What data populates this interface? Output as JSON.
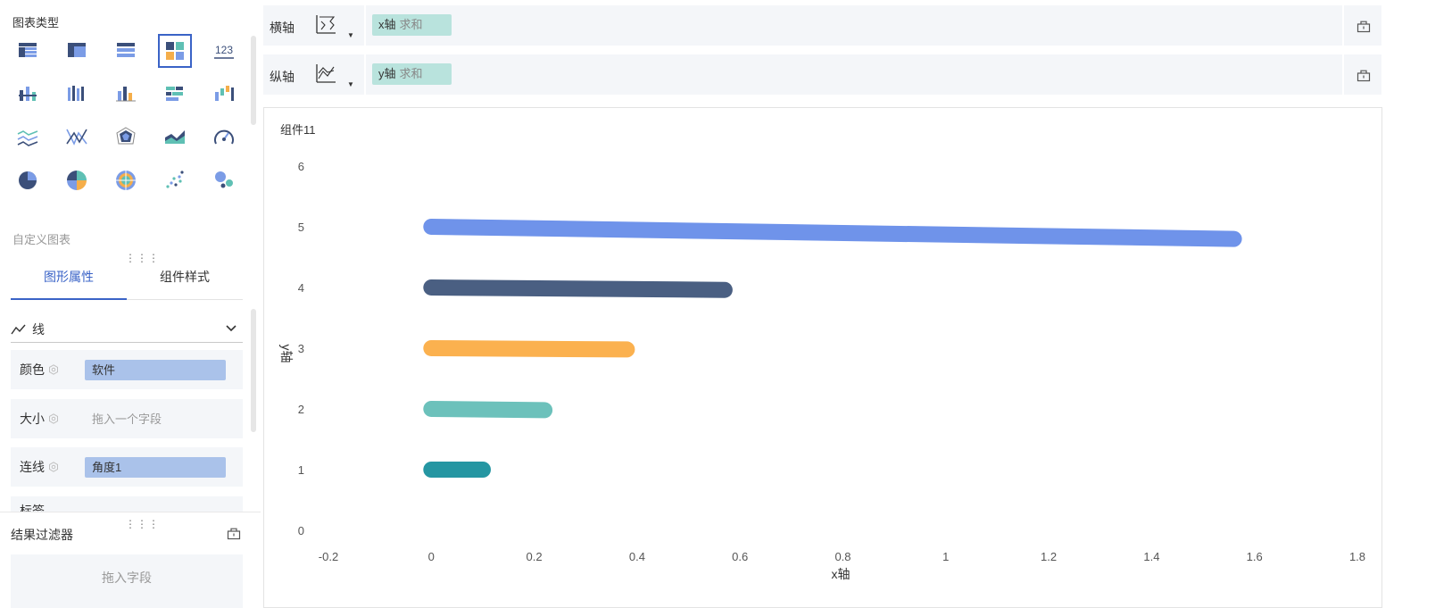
{
  "left_panel": {
    "chart_type_title": "图表类型",
    "custom_chart_label": "自定义图表",
    "chart_types": [
      "table-icon",
      "pivot-table-icon",
      "detail-table-icon",
      "combo-chart-icon",
      "number-card-icon",
      "stacked-bar-icon",
      "grouped-column-icon",
      "column-chart-icon",
      "horizontal-bar-icon",
      "waterfall-icon",
      "line-chart-icon",
      "radar-lines-icon",
      "radar-chart-icon",
      "area-chart-icon",
      "gauge-icon",
      "pie-chart-icon",
      "donut-pie-icon",
      "rose-chart-icon",
      "scatter-icon",
      "bubble-icon"
    ],
    "number_card_text": "123",
    "tabs": [
      {
        "label": "图形属性"
      },
      {
        "label": "组件样式"
      }
    ],
    "mark_type": "线",
    "properties": {
      "color": {
        "label": "颜色",
        "value": "软件"
      },
      "size": {
        "label": "大小",
        "placeholder": "拖入一个字段"
      },
      "connect": {
        "label": "连线",
        "value": "角度1"
      },
      "label": {
        "label": "标签"
      }
    },
    "filter": {
      "title": "结果过滤器",
      "drop_placeholder": "拖入字段"
    }
  },
  "x_axis_bar": {
    "label": "横轴",
    "chip_field": "x轴",
    "chip_agg": "求和"
  },
  "y_axis_bar": {
    "label": "纵轴",
    "chip_field": "y轴",
    "chip_agg": "求和"
  },
  "colors": {
    "accent": "#3a63c7",
    "series": [
      "#6f93ea",
      "#4a5f82",
      "#fbb14f",
      "#6cc1bb",
      "#2596a2"
    ]
  },
  "chart_data": {
    "type": "line",
    "title": "组件11",
    "xlabel": "x轴",
    "ylabel": "y轴",
    "xlim": [
      -0.2,
      1.8
    ],
    "ylim": [
      0,
      6
    ],
    "x_ticks": [
      "-0.2",
      "0",
      "0.2",
      "0.4",
      "0.6",
      "0.8",
      "1",
      "1.2",
      "1.4",
      "1.6",
      "1.8"
    ],
    "y_ticks": [
      "0",
      "1",
      "2",
      "3",
      "4",
      "5",
      "6"
    ],
    "series": [
      {
        "x": [
          0,
          1.56
        ],
        "y": [
          5,
          4.8
        ]
      },
      {
        "x": [
          0,
          0.57
        ],
        "y": [
          4,
          3.96
        ]
      },
      {
        "x": [
          0,
          0.38
        ],
        "y": [
          3,
          2.98
        ]
      },
      {
        "x": [
          0,
          0.22
        ],
        "y": [
          2,
          1.98
        ]
      },
      {
        "x": [
          0,
          0.1
        ],
        "y": [
          1,
          1
        ]
      }
    ]
  }
}
